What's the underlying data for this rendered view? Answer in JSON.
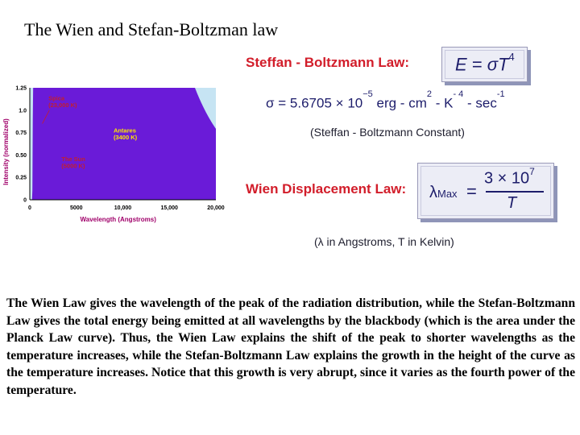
{
  "title": "The Wien and Stefan-Boltzman law",
  "chart_data": {
    "type": "area",
    "ylabel": "Intensity (normalized)",
    "xlabel": "Wavelength (Angstroms)",
    "xlim": [
      0,
      20000
    ],
    "ylim": [
      0,
      1.25
    ],
    "x_ticks": [
      "0",
      "5000",
      "10,000",
      "15,000",
      "20,000"
    ],
    "y_ticks": [
      "0",
      "0.25",
      "0.50",
      "0.75",
      "1.0",
      "1.25"
    ],
    "grid": false,
    "series": [
      {
        "name_lines": [
          "Antares",
          "(3400 K)"
        ],
        "temperature_k": 3400,
        "color": "#e0196e",
        "label_color": "#ffe800"
      },
      {
        "name_lines": [
          "The Sun",
          "(5000 K)"
        ],
        "temperature_k": 5000,
        "color": "#f7f20a",
        "label_color": "#c21f2e"
      },
      {
        "name_lines": [
          "Spica",
          "(23,000 K)"
        ],
        "temperature_k": 23000,
        "color": "#6a1bd8",
        "label_color": "#c21f2e"
      }
    ],
    "background": "#c6e4f3"
  },
  "stefan": {
    "heading": "Steffan - Boltzmann Law:",
    "formula_lhs": "E",
    "formula_eq": "=",
    "formula_rhs": "σT",
    "formula_exp": "4",
    "constant_sigma": "σ",
    "constant_eq": "=",
    "constant_value": "5.6705",
    "constant_times": "×",
    "constant_base": "10",
    "constant_exp": "−5",
    "constant_units_pre": "erg - cm",
    "constant_units_cm_exp": "2",
    "constant_units_mid": "- K",
    "constant_units_k_exp": "- 4",
    "constant_units_post": "- sec",
    "constant_units_sec_exp": "-1",
    "constant_note": "(Steffan - Boltzmann Constant)"
  },
  "wien": {
    "heading": "Wien Displacement Law:",
    "lambda": "λ",
    "lambda_sub": "Max",
    "eq": "=",
    "numerator": "3 × 10",
    "numerator_exp": "7",
    "denominator": "T",
    "note": "(λ in Angstroms, T in Kelvin)"
  },
  "paragraph": "The Wien Law gives the wavelength of the peak of the radiation distribution, while the Stefan-Boltzmann Law gives the total energy being emitted at all wavelengths by the blackbody (which is the area under the Planck Law curve). Thus, the Wien Law explains the shift of the peak to shorter wavelengths as the temperature increases, while the Stefan-Boltzmann Law explains the growth in the height of the curve as the temperature increases. Notice that this growth is very abrupt, since it varies as the fourth power of the temperature.",
  "colors": {
    "heading_red": "#d21d2a",
    "formula_navy": "#1d1d6b",
    "box_fill": "#ecedf6",
    "box_shadow": "#8f95b8"
  }
}
